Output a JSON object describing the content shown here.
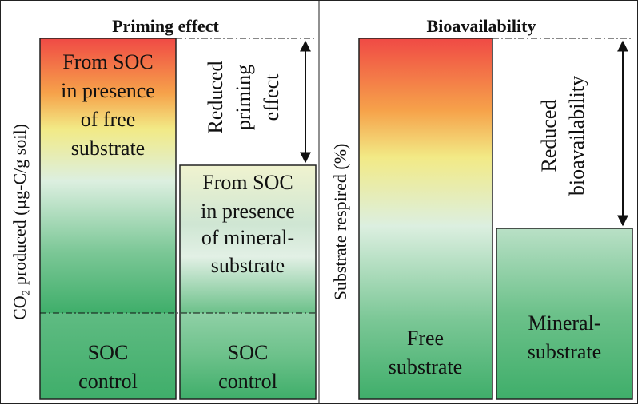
{
  "colors": {
    "top": "#f04a45",
    "orange": "#f6a24a",
    "yellow": "#f2ea86",
    "pale": "#dcefe0",
    "green": "#6cc18a",
    "green_dark": "#3fae6a",
    "frame": "#222222"
  },
  "panels": {
    "priming": {
      "title": "Priming effect",
      "ylabel": "CO₂ produced (µg-C/g soil)",
      "bar_free_label": [
        "From SOC",
        "in presence",
        "of free",
        "substrate"
      ],
      "bar_mineral_label": [
        "From SOC",
        "in presence",
        "of mineral-",
        "substrate"
      ],
      "control_left_label": [
        "SOC",
        "control"
      ],
      "control_right_label": [
        "SOC",
        "control"
      ],
      "arrow_label": [
        "Reduced",
        "priming",
        "effect"
      ]
    },
    "bioavailability": {
      "title": "Bioavailability",
      "ylabel": "Substrate respired (%)",
      "bar_free_label": [
        "Free",
        "substrate"
      ],
      "bar_mineral_label": [
        "Mineral-",
        "substrate"
      ],
      "arrow_label": [
        "Reduced",
        "bioavailability"
      ]
    }
  },
  "icons": [
    "double-headed-arrow-icon"
  ]
}
